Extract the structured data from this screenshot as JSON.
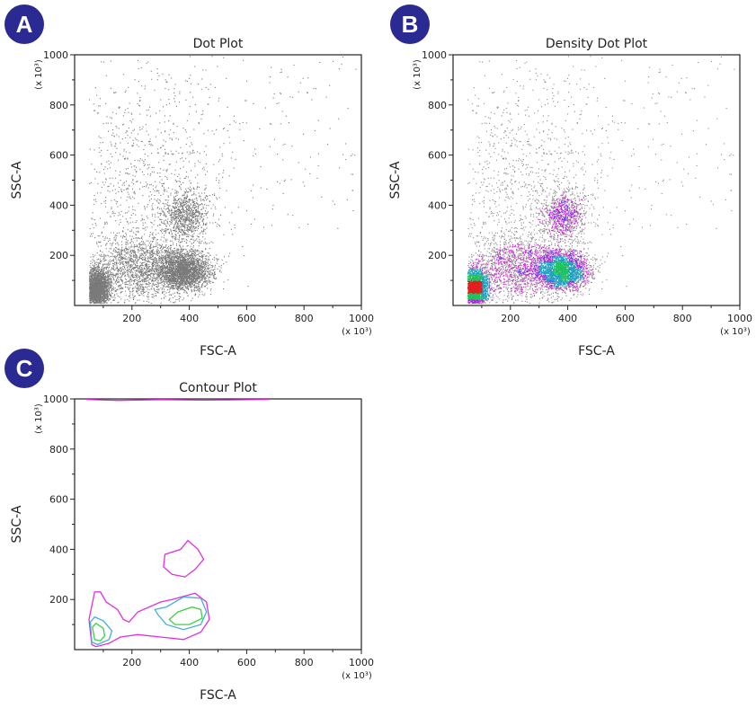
{
  "chart_data": [
    {
      "panel": "A",
      "type": "scatter",
      "title": "Dot Plot",
      "xlabel": "FSC-A",
      "ylabel": "SSC-A",
      "x_multiplier": "(x 10³)",
      "y_multiplier": "(x 10³)",
      "xlim": [
        0,
        1000
      ],
      "ylim": [
        0,
        1000
      ],
      "x_ticks": [
        "200",
        "400",
        "600",
        "800",
        "1000"
      ],
      "y_ticks": [
        "200",
        "400",
        "600",
        "800",
        "1000"
      ],
      "dot_color": "#7a7a7a",
      "grid": false,
      "style": "dot"
    },
    {
      "panel": "B",
      "type": "scatter",
      "title": "Density Dot Plot",
      "xlabel": "FSC-A",
      "ylabel": "SSC-A",
      "x_multiplier": "(x 10³)",
      "y_multiplier": "(x 10³)",
      "xlim": [
        0,
        1000
      ],
      "ylim": [
        0,
        1000
      ],
      "x_ticks": [
        "200",
        "400",
        "600",
        "800",
        "1000"
      ],
      "y_ticks": [
        "200",
        "400",
        "600",
        "800",
        "1000"
      ],
      "density_colors": [
        "#8a8a8a",
        "#d020d0",
        "#6040e0",
        "#20a0c0",
        "#20c060",
        "#e02020"
      ],
      "grid": false,
      "style": "density"
    },
    {
      "panel": "C",
      "type": "contour",
      "title": "Contour Plot",
      "xlabel": "FSC-A",
      "ylabel": "SSC-A",
      "x_multiplier": "(x 10³)",
      "y_multiplier": "(x 10³)",
      "xlim": [
        0,
        1000
      ],
      "ylim": [
        0,
        1000
      ],
      "x_ticks": [
        "200",
        "400",
        "600",
        "800",
        "1000"
      ],
      "y_ticks": [
        "200",
        "400",
        "600",
        "800",
        "1000"
      ],
      "grid": false,
      "style": "contour",
      "contours": [
        {
          "level": "outer",
          "color": "#e030e0",
          "points": [
            [
              60,
              20
            ],
            [
              50,
              120
            ],
            [
              70,
              230
            ],
            [
              90,
              230
            ],
            [
              110,
              190
            ],
            [
              150,
              160
            ],
            [
              170,
              120
            ],
            [
              190,
              110
            ],
            [
              220,
              150
            ],
            [
              260,
              170
            ],
            [
              300,
              190
            ],
            [
              340,
              200
            ],
            [
              420,
              225
            ],
            [
              460,
              190
            ],
            [
              470,
              120
            ],
            [
              440,
              70
            ],
            [
              380,
              40
            ],
            [
              300,
              50
            ],
            [
              220,
              60
            ],
            [
              160,
              50
            ],
            [
              120,
              25
            ],
            [
              75,
              12
            ]
          ]
        },
        {
          "level": "outer",
          "color": "#e030e0",
          "points": [
            [
              310,
              330
            ],
            [
              315,
              380
            ],
            [
              370,
              400
            ],
            [
              395,
              435
            ],
            [
              430,
              400
            ],
            [
              450,
              360
            ],
            [
              420,
              320
            ],
            [
              385,
              290
            ],
            [
              340,
              300
            ]
          ]
        },
        {
          "level": "outer",
          "color": "#e030e0",
          "points": [
            [
              40,
              998
            ],
            [
              150,
              994
            ],
            [
              300,
              997
            ],
            [
              450,
              995
            ],
            [
              680,
              998
            ]
          ]
        },
        {
          "level": "mid",
          "color": "#40b0e0",
          "points": [
            [
              60,
              30
            ],
            [
              55,
              110
            ],
            [
              70,
              130
            ],
            [
              100,
              115
            ],
            [
              130,
              75
            ],
            [
              120,
              40
            ],
            [
              80,
              20
            ]
          ]
        },
        {
          "level": "mid",
          "color": "#40b0e0",
          "points": [
            [
              280,
              160
            ],
            [
              320,
              170
            ],
            [
              380,
              210
            ],
            [
              440,
              205
            ],
            [
              460,
              150
            ],
            [
              440,
              100
            ],
            [
              380,
              80
            ],
            [
              320,
              100
            ],
            [
              290,
              140
            ]
          ]
        },
        {
          "level": "inner",
          "color": "#40d040",
          "points": [
            [
              70,
              40
            ],
            [
              62,
              90
            ],
            [
              75,
              105
            ],
            [
              100,
              85
            ],
            [
              105,
              55
            ],
            [
              90,
              35
            ]
          ]
        },
        {
          "level": "inner",
          "color": "#40d040",
          "points": [
            [
              330,
              120
            ],
            [
              360,
              150
            ],
            [
              410,
              170
            ],
            [
              440,
              160
            ],
            [
              445,
              125
            ],
            [
              400,
              100
            ],
            [
              350,
              100
            ]
          ]
        }
      ]
    }
  ],
  "populations": [
    {
      "center": [
        75,
        70
      ],
      "sd": [
        22,
        38
      ],
      "count": 2600
    },
    {
      "center": [
        380,
        140
      ],
      "sd": [
        45,
        38
      ],
      "count": 2600
    },
    {
      "center": [
        385,
        360
      ],
      "sd": [
        40,
        50
      ],
      "count": 900
    },
    {
      "center": [
        220,
        150
      ],
      "sd": [
        80,
        70
      ],
      "count": 1700
    },
    {
      "center": [
        240,
        480
      ],
      "sd": [
        140,
        230
      ],
      "count": 900
    }
  ],
  "panel_labels": [
    "A",
    "B",
    "C"
  ],
  "badge_color": "#2b2a93"
}
